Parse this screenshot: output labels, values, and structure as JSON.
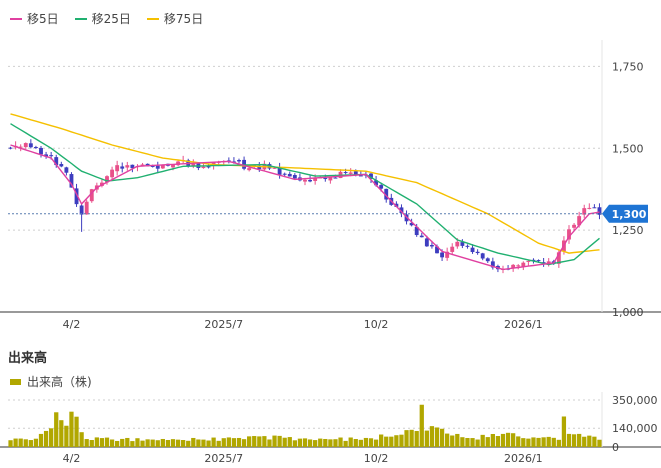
{
  "legend": {
    "ma5": "移5日",
    "ma25": "移25日",
    "ma75": "移75日"
  },
  "colors": {
    "ma5": "#e040a0",
    "ma25": "#20b070",
    "ma75": "#f5c000",
    "candle_up": "#e8508a",
    "candle_down": "#3d3dbf",
    "volume": "#b1a700",
    "current_price_badge": "#1e74d4"
  },
  "volume_panel": {
    "title": "出来高",
    "legend": "出来高（株)"
  },
  "chart_data": [
    {
      "type": "candlestick",
      "panel": "price",
      "y_ticks": [
        "1,750",
        "1,500",
        "1,250",
        "1,000"
      ],
      "y_tick_values": [
        1750,
        1500,
        1250,
        1000
      ],
      "ylim": [
        1000,
        1800
      ],
      "x_tick_labels": [
        "4/2",
        "2025/7",
        "10/2",
        "2026/1"
      ],
      "x_tick_index": [
        12,
        42,
        72,
        101
      ],
      "n_sessions": 117,
      "current_price": 1300,
      "current_price_label": "1,300",
      "close_keypoints": [
        {
          "i": 0,
          "v": 1505
        },
        {
          "i": 4,
          "v": 1510
        },
        {
          "i": 8,
          "v": 1470
        },
        {
          "i": 11,
          "v": 1430
        },
        {
          "i": 13,
          "v": 1330
        },
        {
          "i": 14,
          "v": 1290
        },
        {
          "i": 16,
          "v": 1370
        },
        {
          "i": 18,
          "v": 1400
        },
        {
          "i": 21,
          "v": 1440
        },
        {
          "i": 25,
          "v": 1450
        },
        {
          "i": 28,
          "v": 1440
        },
        {
          "i": 33,
          "v": 1460
        },
        {
          "i": 38,
          "v": 1445
        },
        {
          "i": 43,
          "v": 1465
        },
        {
          "i": 47,
          "v": 1440
        },
        {
          "i": 51,
          "v": 1445
        },
        {
          "i": 56,
          "v": 1400
        },
        {
          "i": 61,
          "v": 1405
        },
        {
          "i": 66,
          "v": 1425
        },
        {
          "i": 70,
          "v": 1420
        },
        {
          "i": 73,
          "v": 1370
        },
        {
          "i": 78,
          "v": 1280
        },
        {
          "i": 82,
          "v": 1200
        },
        {
          "i": 85,
          "v": 1175
        },
        {
          "i": 88,
          "v": 1215
        },
        {
          "i": 91,
          "v": 1190
        },
        {
          "i": 94,
          "v": 1150
        },
        {
          "i": 97,
          "v": 1125
        },
        {
          "i": 100,
          "v": 1140
        },
        {
          "i": 104,
          "v": 1160
        },
        {
          "i": 107,
          "v": 1145
        },
        {
          "i": 109,
          "v": 1220
        },
        {
          "i": 112,
          "v": 1300
        },
        {
          "i": 114,
          "v": 1320
        },
        {
          "i": 116,
          "v": 1300
        }
      ],
      "ma5_keypoints": [
        {
          "i": 0,
          "v": 1510
        },
        {
          "i": 8,
          "v": 1470
        },
        {
          "i": 12,
          "v": 1390
        },
        {
          "i": 14,
          "v": 1330
        },
        {
          "i": 17,
          "v": 1380
        },
        {
          "i": 25,
          "v": 1445
        },
        {
          "i": 43,
          "v": 1460
        },
        {
          "i": 56,
          "v": 1405
        },
        {
          "i": 70,
          "v": 1420
        },
        {
          "i": 78,
          "v": 1290
        },
        {
          "i": 85,
          "v": 1185
        },
        {
          "i": 97,
          "v": 1130
        },
        {
          "i": 107,
          "v": 1150
        },
        {
          "i": 110,
          "v": 1230
        },
        {
          "i": 114,
          "v": 1300
        },
        {
          "i": 116,
          "v": 1305
        }
      ],
      "ma25_keypoints": [
        {
          "i": 0,
          "v": 1575
        },
        {
          "i": 8,
          "v": 1500
        },
        {
          "i": 14,
          "v": 1430
        },
        {
          "i": 19,
          "v": 1400
        },
        {
          "i": 25,
          "v": 1410
        },
        {
          "i": 34,
          "v": 1445
        },
        {
          "i": 50,
          "v": 1450
        },
        {
          "i": 60,
          "v": 1415
        },
        {
          "i": 70,
          "v": 1420
        },
        {
          "i": 80,
          "v": 1330
        },
        {
          "i": 88,
          "v": 1220
        },
        {
          "i": 96,
          "v": 1180
        },
        {
          "i": 106,
          "v": 1145
        },
        {
          "i": 111,
          "v": 1160
        },
        {
          "i": 116,
          "v": 1225
        }
      ],
      "ma75_keypoints": [
        {
          "i": 0,
          "v": 1605
        },
        {
          "i": 10,
          "v": 1560
        },
        {
          "i": 20,
          "v": 1510
        },
        {
          "i": 30,
          "v": 1470
        },
        {
          "i": 40,
          "v": 1450
        },
        {
          "i": 56,
          "v": 1440
        },
        {
          "i": 70,
          "v": 1430
        },
        {
          "i": 80,
          "v": 1395
        },
        {
          "i": 94,
          "v": 1300
        },
        {
          "i": 104,
          "v": 1210
        },
        {
          "i": 110,
          "v": 1180
        },
        {
          "i": 116,
          "v": 1190
        }
      ]
    },
    {
      "type": "bar",
      "panel": "volume",
      "y_ticks": [
        "350,000",
        "140,000",
        "0"
      ],
      "y_tick_values": [
        350000,
        140000,
        0
      ],
      "ylim": [
        0,
        380000
      ],
      "volume_keypoints": [
        {
          "i": 0,
          "v": 60000
        },
        {
          "i": 4,
          "v": 50000
        },
        {
          "i": 6,
          "v": 110000
        },
        {
          "i": 8,
          "v": 140000
        },
        {
          "i": 9,
          "v": 230000
        },
        {
          "i": 10,
          "v": 200000
        },
        {
          "i": 11,
          "v": 150000
        },
        {
          "i": 12,
          "v": 340000
        },
        {
          "i": 13,
          "v": 220000
        },
        {
          "i": 14,
          "v": 90000
        },
        {
          "i": 16,
          "v": 60000
        },
        {
          "i": 30,
          "v": 50000
        },
        {
          "i": 50,
          "v": 70000
        },
        {
          "i": 70,
          "v": 55000
        },
        {
          "i": 80,
          "v": 120000
        },
        {
          "i": 81,
          "v": 260000
        },
        {
          "i": 82,
          "v": 140000
        },
        {
          "i": 90,
          "v": 60000
        },
        {
          "i": 97,
          "v": 90000
        },
        {
          "i": 100,
          "v": 80000
        },
        {
          "i": 108,
          "v": 60000
        },
        {
          "i": 109,
          "v": 230000
        },
        {
          "i": 110,
          "v": 120000
        },
        {
          "i": 116,
          "v": 60000
        }
      ]
    }
  ]
}
